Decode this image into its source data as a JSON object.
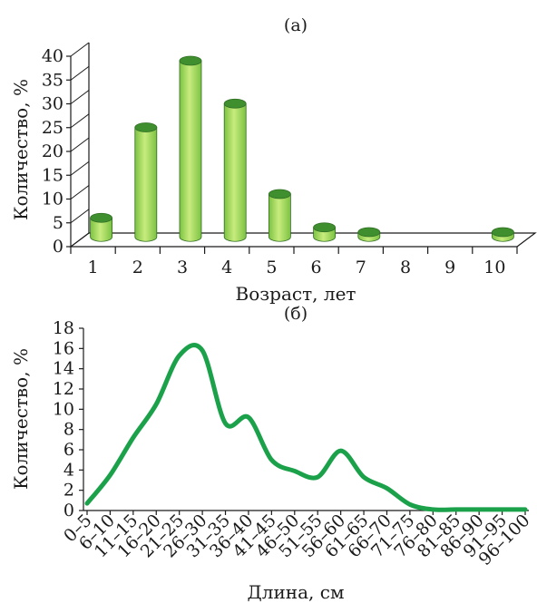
{
  "chart_data": [
    {
      "type": "bar",
      "panel_label": "(а)",
      "xlabel": "Возраст, лет",
      "ylabel": "Количество, %",
      "categories": [
        "1",
        "2",
        "3",
        "4",
        "5",
        "6",
        "7",
        "8",
        "9",
        "10"
      ],
      "values": [
        4,
        23,
        37,
        28,
        9,
        2,
        1,
        0,
        0,
        1
      ],
      "ylim": [
        0,
        40
      ],
      "yticks": [
        "0",
        "5",
        "10",
        "15",
        "20",
        "25",
        "30",
        "35",
        "40"
      ],
      "style": "3d-cylinder",
      "colors": {
        "bar": "#7cc242",
        "bar_top": "#3f8f2f",
        "bar_light": "#c8ec7e"
      }
    },
    {
      "type": "line",
      "panel_label": "(б)",
      "xlabel": "Длина, см",
      "ylabel": "Количество, %",
      "categories": [
        "0–5",
        "6–10",
        "11–15",
        "16–20",
        "21–25",
        "26–30",
        "31–35",
        "36–40",
        "41–45",
        "46–50",
        "51–55",
        "56–60",
        "61–65",
        "66–70",
        "71–75",
        "76–80",
        "81–85",
        "86–90",
        "91–95",
        "96–100"
      ],
      "values": [
        0.7,
        3.5,
        7.2,
        10.5,
        15.3,
        15.8,
        8.6,
        9.2,
        5.0,
        3.9,
        3.3,
        5.9,
        3.3,
        2.2,
        0.6,
        0.1,
        0.1,
        0.1,
        0.1,
        0.1
      ],
      "ylim": [
        0,
        18
      ],
      "yticks": [
        "0",
        "2",
        "4",
        "6",
        "8",
        "10",
        "12",
        "14",
        "16",
        "18"
      ],
      "colors": {
        "line": "#1aa14a"
      }
    }
  ]
}
